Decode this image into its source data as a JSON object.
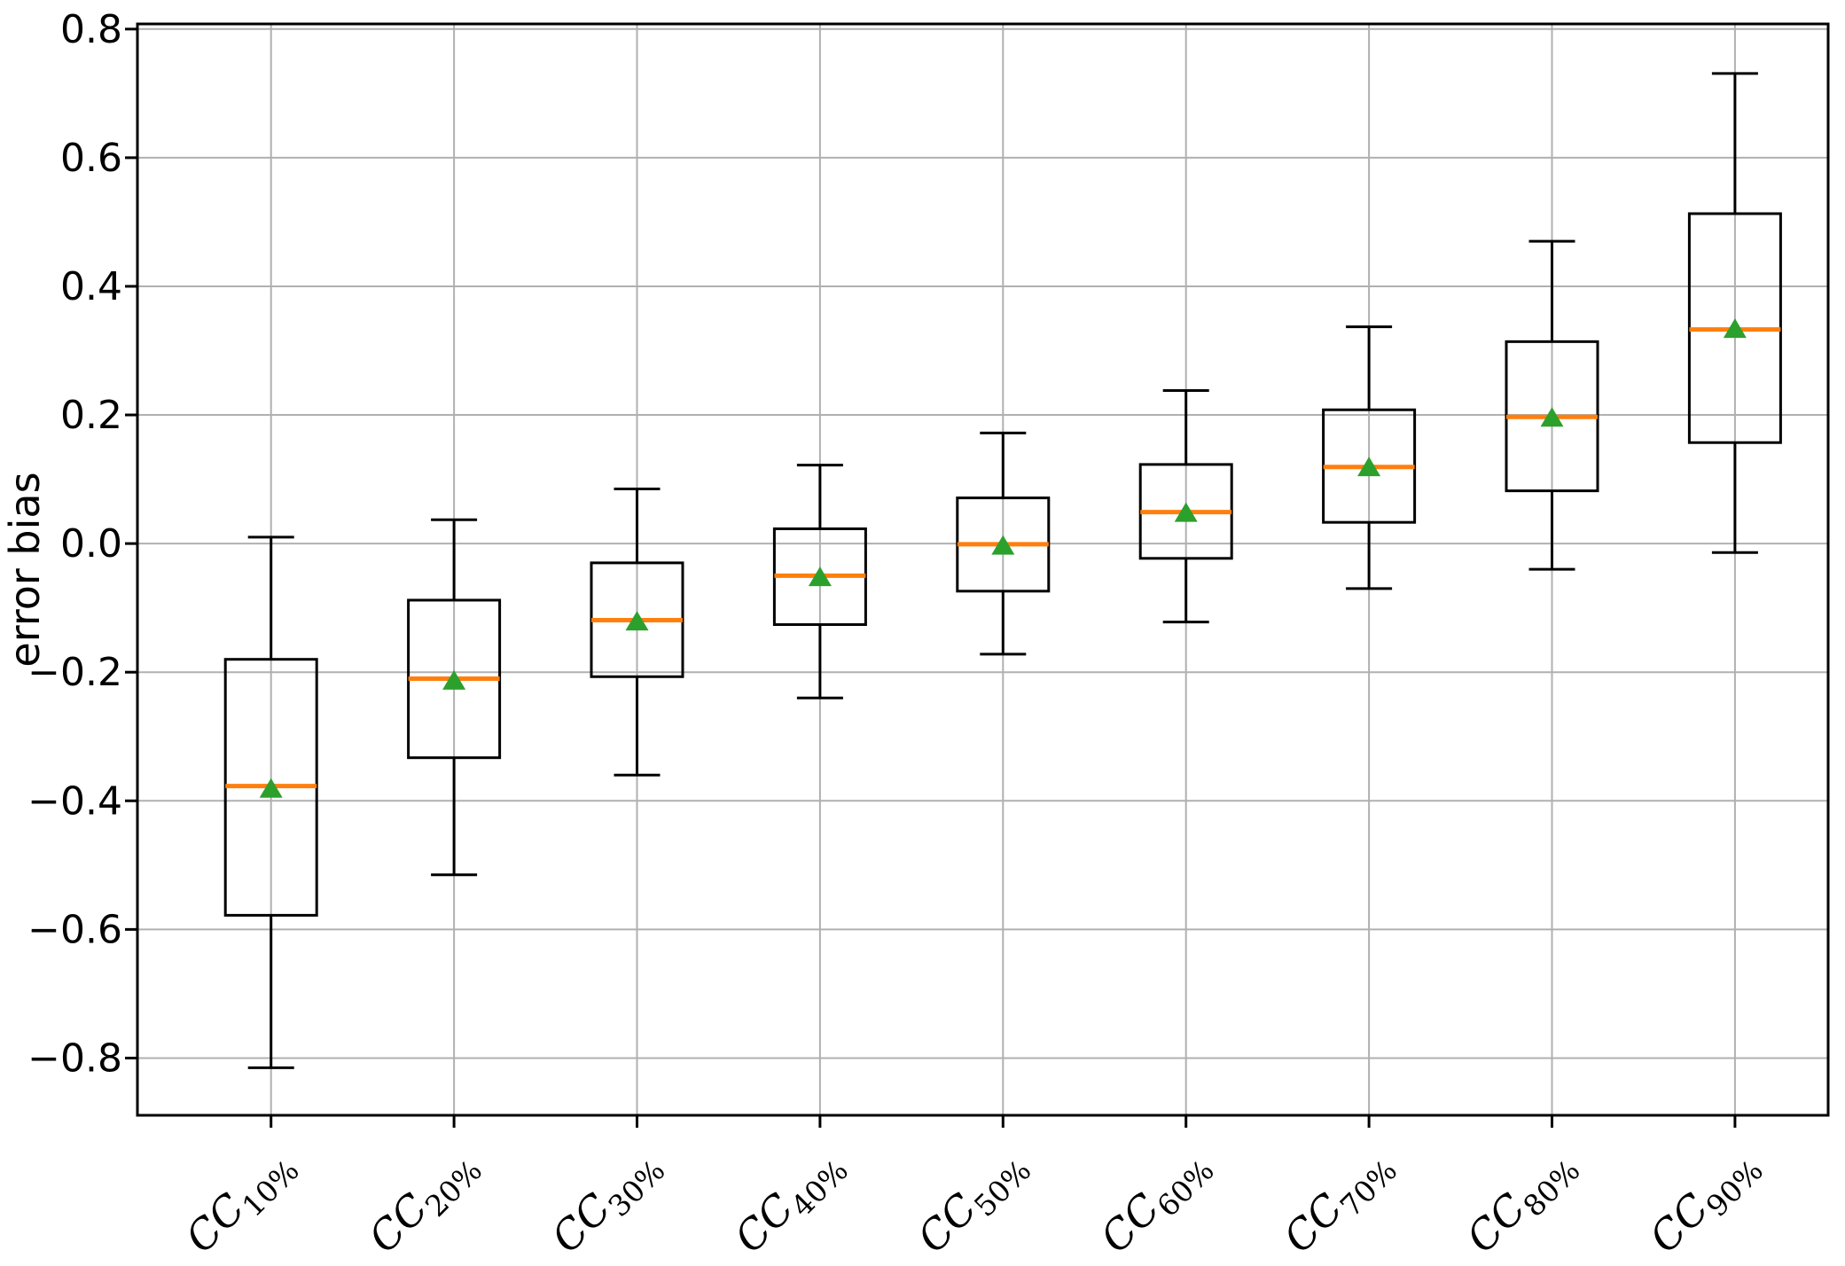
{
  "chart_data": {
    "type": "box",
    "title": "",
    "xlabel": "",
    "ylabel": "error bias",
    "ylim": [
      -0.889,
      0.808
    ],
    "grid": true,
    "legend": "none",
    "colors": {
      "background": "#ffffff",
      "box_line": "#000000",
      "whisker_line": "#000000",
      "median_line": "#ff7f0e",
      "mean_marker": "#2ca02c",
      "grid_line": "#b0b0b0",
      "spine": "#000000",
      "tick_label": "#000000"
    },
    "yticks": [
      {
        "value": 0.8,
        "label": "0.8"
      },
      {
        "value": 0.6,
        "label": "0.6"
      },
      {
        "value": 0.4,
        "label": "0.4"
      },
      {
        "value": 0.2,
        "label": "0.2"
      },
      {
        "value": 0.0,
        "label": "0.0"
      },
      {
        "value": -0.2,
        "label": "−0.2"
      },
      {
        "value": -0.4,
        "label": "−0.4"
      },
      {
        "value": -0.6,
        "label": "−0.6"
      },
      {
        "value": -0.8,
        "label": "−0.8"
      }
    ],
    "categories": [
      {
        "base": "CC",
        "sub": "10%"
      },
      {
        "base": "CC",
        "sub": "20%"
      },
      {
        "base": "CC",
        "sub": "30%"
      },
      {
        "base": "CC",
        "sub": "40%"
      },
      {
        "base": "CC",
        "sub": "50%"
      },
      {
        "base": "CC",
        "sub": "60%"
      },
      {
        "base": "CC",
        "sub": "70%"
      },
      {
        "base": "CC",
        "sub": "80%"
      },
      {
        "base": "CC",
        "sub": "90%"
      }
    ],
    "boxes": [
      {
        "label": "CC10%",
        "whislo": -0.815,
        "q1": -0.578,
        "med": -0.377,
        "mean": -0.38,
        "q3": -0.18,
        "whishi": 0.01
      },
      {
        "label": "CC20%",
        "whislo": -0.515,
        "q1": -0.333,
        "med": -0.21,
        "mean": -0.212,
        "q3": -0.088,
        "whishi": 0.037
      },
      {
        "label": "CC30%",
        "whislo": -0.36,
        "q1": -0.207,
        "med": -0.119,
        "mean": -0.12,
        "q3": -0.03,
        "whishi": 0.085
      },
      {
        "label": "CC40%",
        "whislo": -0.24,
        "q1": -0.126,
        "med": -0.05,
        "mean": -0.051,
        "q3": 0.023,
        "whishi": 0.122
      },
      {
        "label": "CC50%",
        "whislo": -0.172,
        "q1": -0.074,
        "med": -0.001,
        "mean": -0.002,
        "q3": 0.071,
        "whishi": 0.172
      },
      {
        "label": "CC60%",
        "whislo": -0.122,
        "q1": -0.023,
        "med": 0.049,
        "mean": 0.049,
        "q3": 0.123,
        "whishi": 0.238
      },
      {
        "label": "CC70%",
        "whislo": -0.07,
        "q1": 0.033,
        "med": 0.119,
        "mean": 0.12,
        "q3": 0.208,
        "whishi": 0.337
      },
      {
        "label": "CC80%",
        "whislo": -0.04,
        "q1": 0.082,
        "med": 0.197,
        "mean": 0.197,
        "q3": 0.314,
        "whishi": 0.47
      },
      {
        "label": "CC90%",
        "whislo": -0.014,
        "q1": 0.157,
        "med": 0.333,
        "mean": 0.335,
        "q3": 0.513,
        "whishi": 0.731
      }
    ]
  }
}
